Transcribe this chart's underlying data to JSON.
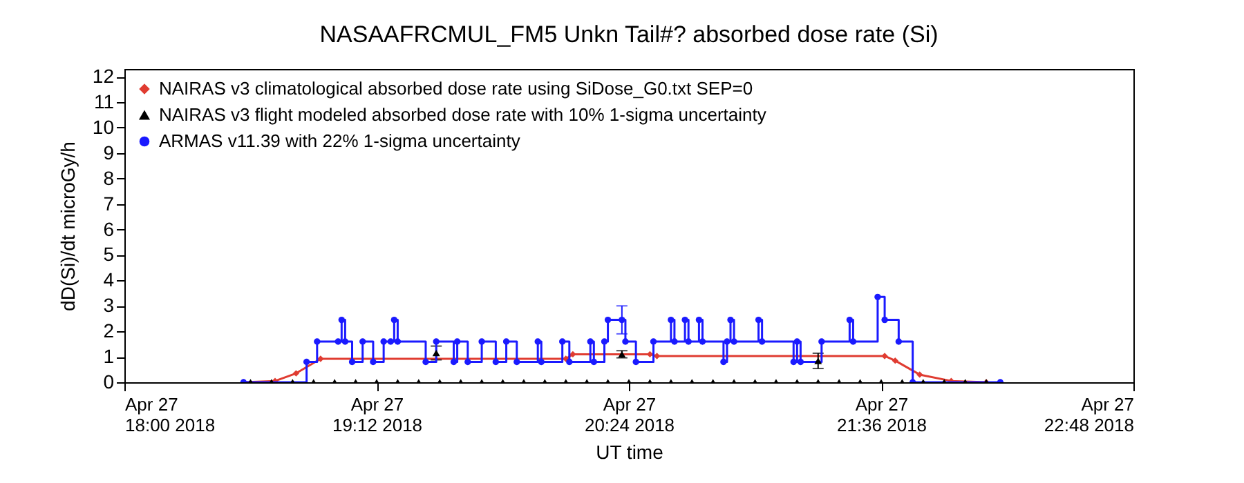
{
  "chart_data": {
    "type": "step",
    "title": "NASAAFRCMUL_FM5 Unkn Tail#? absorbed dose rate (Si)",
    "xlabel": "UT time",
    "ylabel": "dD(Si)/dt microGy/h",
    "xlim": [
      "2018-04-27T18:00",
      "2018-04-27T22:48"
    ],
    "xticks": [
      {
        "value": "2018-04-27T18:00",
        "label": "Apr 27\n18:00 2018"
      },
      {
        "value": "2018-04-27T19:12",
        "label": "Apr 27\n19:12 2018"
      },
      {
        "value": "2018-04-27T20:24",
        "label": "Apr 27\n20:24 2018"
      },
      {
        "value": "2018-04-27T21:36",
        "label": "Apr 27\n21:36 2018"
      },
      {
        "value": "2018-04-27T22:48",
        "label": "Apr 27\n22:48 2018"
      }
    ],
    "ylim": [
      0,
      12.3
    ],
    "yticks": [
      0,
      1,
      2,
      3,
      4,
      5,
      6,
      7,
      8,
      9,
      10,
      11,
      12
    ],
    "grid": false,
    "legend": "top left",
    "series": [
      {
        "name": "NAIRAS v3 climatological absorbed dose rate using SiDose_G0.txt SEP=0",
        "type": "line",
        "color": "#e03c31",
        "marker": "diamond",
        "line_style": "solid",
        "x": [
          "2018-04-27T18:34",
          "2018-04-27T18:43",
          "2018-04-27T18:49",
          "2018-04-27T18:56",
          "2018-04-27T20:06",
          "2018-04-27T20:08",
          "2018-04-27T20:30",
          "2018-04-27T20:32",
          "2018-04-27T21:37",
          "2018-04-27T21:40",
          "2018-04-27T21:47",
          "2018-04-27T21:56",
          "2018-04-27T22:06"
        ],
        "values": [
          0,
          0.05,
          0.35,
          0.92,
          0.92,
          1.1,
          1.1,
          1.03,
          1.03,
          0.85,
          0.3,
          0.05,
          0
        ]
      },
      {
        "name": "NAIRAS v3 flight modeled absorbed dose rate with 10% 1-sigma uncertainty",
        "type": "scatter",
        "color": "#000000",
        "marker": "triangle",
        "x": [
          "2018-04-27T18:36",
          "2018-04-27T18:42",
          "2018-04-27T18:48",
          "2018-04-27T18:54",
          "2018-04-27T19:00",
          "2018-04-27T19:06",
          "2018-04-27T19:12",
          "2018-04-27T19:18",
          "2018-04-27T19:24",
          "2018-04-27T19:29",
          "2018-04-27T19:30",
          "2018-04-27T19:36",
          "2018-04-27T19:42",
          "2018-04-27T19:48",
          "2018-04-27T19:54",
          "2018-04-27T20:00",
          "2018-04-27T20:06",
          "2018-04-27T20:12",
          "2018-04-27T20:18",
          "2018-04-27T20:22",
          "2018-04-27T20:24",
          "2018-04-27T20:30",
          "2018-04-27T20:36",
          "2018-04-27T20:42",
          "2018-04-27T20:48",
          "2018-04-27T20:54",
          "2018-04-27T21:00",
          "2018-04-27T21:06",
          "2018-04-27T21:12",
          "2018-04-27T21:18",
          "2018-04-27T21:18",
          "2018-04-27T21:24",
          "2018-04-27T21:30",
          "2018-04-27T21:36",
          "2018-04-27T21:42",
          "2018-04-27T21:48",
          "2018-04-27T21:54",
          "2018-04-27T22:00",
          "2018-04-27T22:06"
        ],
        "values": [
          0,
          0,
          0,
          0,
          0,
          0,
          0,
          0,
          0,
          1.15,
          0,
          0,
          0,
          0,
          0,
          0,
          0,
          0,
          0,
          1.1,
          0,
          0,
          0,
          0,
          0,
          0,
          0,
          0,
          0,
          0.84,
          0,
          0,
          0,
          0,
          0,
          0,
          0,
          0,
          0
        ],
        "errors": [
          null,
          null,
          null,
          null,
          null,
          null,
          null,
          null,
          null,
          0.27,
          null,
          null,
          null,
          null,
          null,
          null,
          null,
          null,
          null,
          0.14,
          null,
          null,
          null,
          null,
          null,
          null,
          null,
          null,
          null,
          0.3,
          null,
          null,
          null,
          null,
          null,
          null,
          null,
          null,
          null
        ]
      },
      {
        "name": "ARMAS v11.39 with 22% 1-sigma uncertainty",
        "color": "#1a1aff",
        "marker": "circle",
        "line_style": "solid",
        "x": [
          "2018-04-27T18:34",
          "2018-04-27T18:52",
          "2018-04-27T18:55",
          "2018-04-27T19:01",
          "2018-04-27T19:02",
          "2018-04-27T19:03",
          "2018-04-27T19:05",
          "2018-04-27T19:08",
          "2018-04-27T19:11",
          "2018-04-27T19:14",
          "2018-04-27T19:16",
          "2018-04-27T19:17",
          "2018-04-27T19:18",
          "2018-04-27T19:26",
          "2018-04-27T19:29",
          "2018-04-27T19:34",
          "2018-04-27T19:35",
          "2018-04-27T19:38",
          "2018-04-27T19:42",
          "2018-04-27T19:46",
          "2018-04-27T19:49",
          "2018-04-27T19:52",
          "2018-04-27T19:58",
          "2018-04-27T19:59",
          "2018-04-27T20:05",
          "2018-04-27T20:07",
          "2018-04-27T20:13",
          "2018-04-27T20:14",
          "2018-04-27T20:17",
          "2018-04-27T20:18",
          "2018-04-27T20:22",
          "2018-04-27T20:23",
          "2018-04-27T20:26",
          "2018-04-27T20:31",
          "2018-04-27T20:36",
          "2018-04-27T20:37",
          "2018-04-27T20:40",
          "2018-04-27T20:41",
          "2018-04-27T20:44",
          "2018-04-27T20:45",
          "2018-04-27T20:51",
          "2018-04-27T20:52",
          "2018-04-27T20:53",
          "2018-04-27T20:54",
          "2018-04-27T21:01",
          "2018-04-27T21:02",
          "2018-04-27T21:11",
          "2018-04-27T21:12",
          "2018-04-27T21:13",
          "2018-04-27T21:19",
          "2018-04-27T21:27",
          "2018-04-27T21:28",
          "2018-04-27T21:35",
          "2018-04-27T21:37",
          "2018-04-27T21:41",
          "2018-04-27T21:45",
          "2018-04-27T22:10"
        ],
        "values": [
          0,
          0.8,
          1.6,
          1.6,
          2.45,
          1.6,
          0.8,
          1.6,
          0.8,
          1.6,
          1.6,
          2.45,
          1.6,
          0.8,
          1.6,
          0.8,
          1.6,
          0.8,
          1.6,
          0.8,
          1.6,
          0.8,
          1.6,
          0.8,
          1.6,
          0.8,
          1.6,
          0.8,
          1.6,
          2.45,
          2.45,
          1.6,
          0.8,
          1.6,
          2.45,
          1.6,
          2.45,
          1.6,
          2.45,
          1.6,
          0.8,
          1.6,
          2.45,
          1.6,
          2.45,
          1.6,
          0.8,
          1.6,
          0.8,
          1.6,
          2.45,
          1.6,
          3.35,
          2.45,
          1.6,
          0,
          0
        ],
        "errors": [
          null,
          null,
          null,
          null,
          null,
          null,
          null,
          null,
          null,
          null,
          null,
          null,
          null,
          null,
          null,
          null,
          null,
          null,
          null,
          null,
          null,
          null,
          null,
          null,
          null,
          null,
          null,
          null,
          null,
          null,
          0.55,
          null,
          null,
          null,
          null,
          null,
          null,
          null,
          null,
          null,
          null,
          null,
          null,
          null,
          null,
          null,
          null,
          null,
          null,
          null,
          null,
          null,
          null,
          null,
          null,
          null,
          null
        ]
      }
    ]
  }
}
